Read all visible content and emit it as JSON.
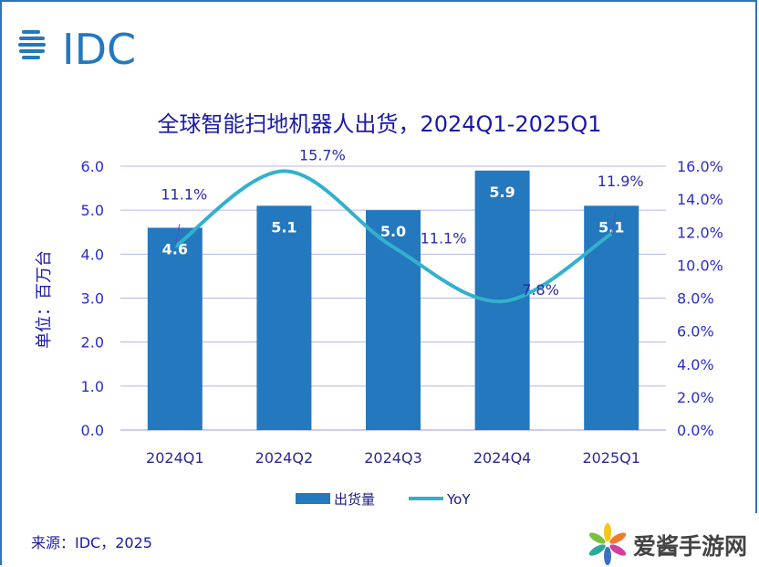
{
  "logo_text": "IDC",
  "source": "来源：IDC，2025",
  "watermark": "爱酱手游网",
  "colors": {
    "bar": "#2478be",
    "line": "#33b1cc",
    "axis_text": "#2b2bd0",
    "title": "#1a1aa8",
    "grid": "#b4b4f0"
  },
  "chart_data": {
    "type": "bar+line",
    "title": "全球智能扫地机器人出货，2024Q1-2025Q1",
    "ylabel": "单位：百万台",
    "categories": [
      "2024Q1",
      "2024Q2",
      "2024Q3",
      "2024Q4",
      "2025Q1"
    ],
    "series": [
      {
        "name": "出货量",
        "type": "bar",
        "axis": "left",
        "values": [
          4.6,
          5.1,
          5.0,
          5.9,
          5.1
        ],
        "labels": [
          "4.6",
          "5.1",
          "5.0",
          "5.9",
          "5.1"
        ]
      },
      {
        "name": "YoY",
        "type": "line",
        "axis": "right",
        "values": [
          11.1,
          15.7,
          11.1,
          7.8,
          11.9
        ],
        "labels": [
          "11.1%",
          "15.7%",
          "11.1%",
          "7.8%",
          "11.9%"
        ]
      }
    ],
    "ylim": [
      0,
      6
    ],
    "yticks": [
      "0.0",
      "1.0",
      "2.0",
      "3.0",
      "4.0",
      "5.0",
      "6.0"
    ],
    "y2lim": [
      0,
      16
    ],
    "y2ticks": [
      "0.0%",
      "2.0%",
      "4.0%",
      "6.0%",
      "8.0%",
      "10.0%",
      "12.0%",
      "14.0%",
      "16.0%"
    ],
    "legend": [
      "出货量",
      "YoY"
    ],
    "legend_position": "bottom",
    "grid": true
  }
}
